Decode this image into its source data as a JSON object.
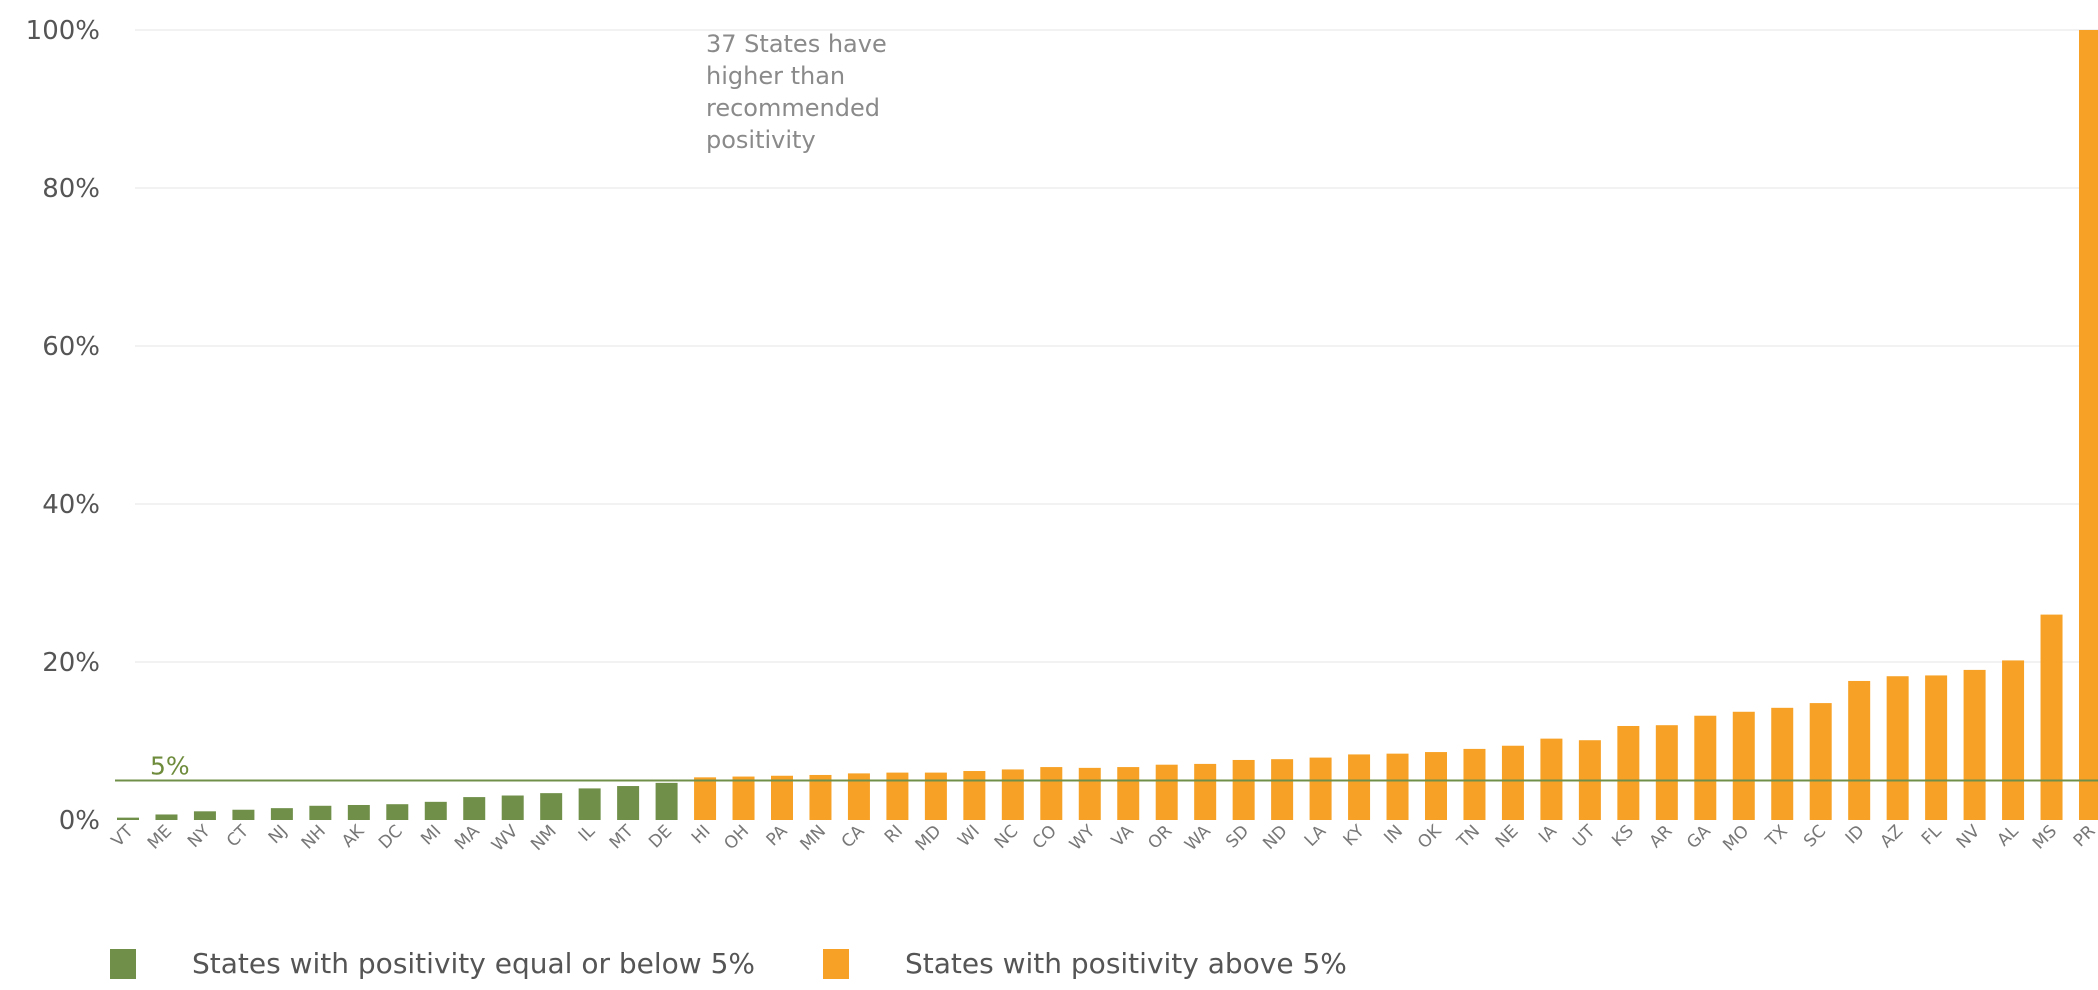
{
  "chart_data": {
    "type": "bar",
    "ylim": [
      0,
      100
    ],
    "yticks": [
      "0%",
      "20%",
      "40%",
      "60%",
      "80%",
      "100%"
    ],
    "categories": [
      "VT",
      "ME",
      "NY",
      "CT",
      "NJ",
      "NH",
      "AK",
      "DC",
      "MI",
      "MA",
      "WV",
      "NM",
      "IL",
      "MT",
      "DE",
      "HI",
      "OH",
      "PA",
      "MN",
      "CA",
      "RI",
      "MD",
      "WI",
      "NC",
      "CO",
      "WY",
      "VA",
      "OR",
      "WA",
      "SD",
      "ND",
      "LA",
      "KY",
      "IN",
      "OK",
      "TN",
      "NE",
      "IA",
      "UT",
      "KS",
      "AR",
      "GA",
      "MO",
      "TX",
      "SC",
      "ID",
      "AZ",
      "FL",
      "NV",
      "AL",
      "MS",
      "PR"
    ],
    "values": [
      0.3,
      0.7,
      1.1,
      1.3,
      1.5,
      1.8,
      1.9,
      2.0,
      2.3,
      2.9,
      3.1,
      3.4,
      4.0,
      4.3,
      4.7,
      5.4,
      5.5,
      5.6,
      5.7,
      5.9,
      6.0,
      6.0,
      6.2,
      6.4,
      6.7,
      6.6,
      6.7,
      7.0,
      7.1,
      7.6,
      7.7,
      7.9,
      8.3,
      8.4,
      8.6,
      9.0,
      9.4,
      10.3,
      10.1,
      11.9,
      12.0,
      13.2,
      13.7,
      14.2,
      14.8,
      17.6,
      18.2,
      18.3,
      19.0,
      20.2,
      26.0,
      100.0
    ],
    "groups": [
      "below",
      "below",
      "below",
      "below",
      "below",
      "below",
      "below",
      "below",
      "below",
      "below",
      "below",
      "below",
      "below",
      "below",
      "below",
      "above",
      "above",
      "above",
      "above",
      "above",
      "above",
      "above",
      "above",
      "above",
      "above",
      "above",
      "above",
      "above",
      "above",
      "above",
      "above",
      "above",
      "above",
      "above",
      "above",
      "above",
      "above",
      "above",
      "above",
      "above",
      "above",
      "above",
      "above",
      "above",
      "above",
      "above",
      "above",
      "above",
      "above",
      "above",
      "above",
      "above"
    ],
    "threshold": {
      "value": 5,
      "label": "5%"
    },
    "annotation": [
      "37 States have",
      "higher than",
      "recommended",
      "positivity"
    ],
    "legend": [
      {
        "key": "below",
        "label": "States with positivity equal or below 5%",
        "color": "#70904a"
      },
      {
        "key": "above",
        "label": "States with positivity above 5%",
        "color": "#f7a226"
      }
    ],
    "grid": true,
    "legend_placement": "bottom"
  }
}
